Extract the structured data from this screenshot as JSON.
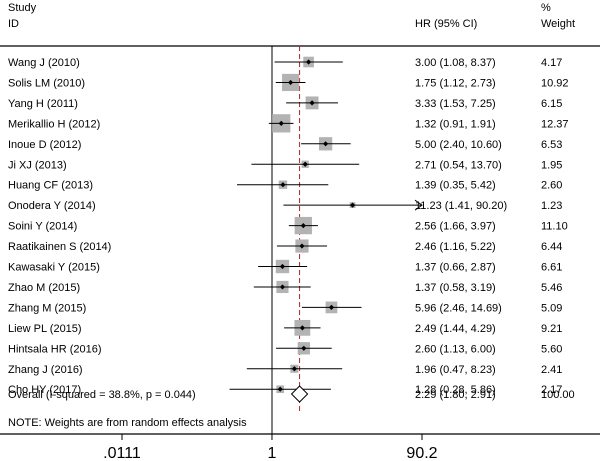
{
  "chart_data": {
    "type": "forest",
    "scale": "log",
    "headers": {
      "study_line1": "Study",
      "study_line2": "ID",
      "hr": "HR (95% CI)",
      "weight_line1": "%",
      "weight_line2": "Weight"
    },
    "studies": [
      {
        "id": "Wang J (2010)",
        "hr": 3.0,
        "lo": 1.08,
        "hi": 8.37,
        "weight": 4.17,
        "ci_text": "3.00 (1.08, 8.37)",
        "weight_text": "4.17"
      },
      {
        "id": "Solis LM (2010)",
        "hr": 1.75,
        "lo": 1.12,
        "hi": 2.73,
        "weight": 10.92,
        "ci_text": "1.75 (1.12, 2.73)",
        "weight_text": "10.92"
      },
      {
        "id": "Yang H (2011)",
        "hr": 3.33,
        "lo": 1.53,
        "hi": 7.25,
        "weight": 6.15,
        "ci_text": "3.33 (1.53, 7.25)",
        "weight_text": "6.15"
      },
      {
        "id": "Merikallio H (2012)",
        "hr": 1.32,
        "lo": 0.91,
        "hi": 1.91,
        "weight": 12.37,
        "ci_text": "1.32 (0.91, 1.91)",
        "weight_text": "12.37"
      },
      {
        "id": "Inoue D (2012)",
        "hr": 5.0,
        "lo": 2.4,
        "hi": 10.6,
        "weight": 6.53,
        "ci_text": "5.00 (2.40, 10.60)",
        "weight_text": "6.53"
      },
      {
        "id": "Ji XJ (2013)",
        "hr": 2.71,
        "lo": 0.54,
        "hi": 13.7,
        "weight": 1.95,
        "ci_text": "2.71 (0.54, 13.70)",
        "weight_text": "1.95"
      },
      {
        "id": "Huang CF (2013)",
        "hr": 1.39,
        "lo": 0.35,
        "hi": 5.42,
        "weight": 2.6,
        "ci_text": "1.39 (0.35, 5.42)",
        "weight_text": "2.60"
      },
      {
        "id": "Onodera Y (2014)",
        "hr": 11.23,
        "lo": 1.41,
        "hi": 90.2,
        "weight": 1.23,
        "ci_text": "11.23 (1.41, 90.20)",
        "weight_text": "1.23",
        "arrow": true
      },
      {
        "id": "Soini Y (2014)",
        "hr": 2.56,
        "lo": 1.66,
        "hi": 3.97,
        "weight": 11.1,
        "ci_text": "2.56 (1.66, 3.97)",
        "weight_text": "11.10"
      },
      {
        "id": "Raatikainen S (2014)",
        "hr": 2.46,
        "lo": 1.16,
        "hi": 5.22,
        "weight": 6.44,
        "ci_text": "2.46 (1.16, 5.22)",
        "weight_text": "6.44"
      },
      {
        "id": "Kawasaki Y (2015)",
        "hr": 1.37,
        "lo": 0.66,
        "hi": 2.87,
        "weight": 6.61,
        "ci_text": "1.37 (0.66, 2.87)",
        "weight_text": "6.61"
      },
      {
        "id": "Zhao M (2015)",
        "hr": 1.37,
        "lo": 0.58,
        "hi": 3.19,
        "weight": 5.46,
        "ci_text": "1.37 (0.58, 3.19)",
        "weight_text": "5.46"
      },
      {
        "id": "Zhang M (2015)",
        "hr": 5.96,
        "lo": 2.46,
        "hi": 14.69,
        "weight": 5.09,
        "ci_text": "5.96 (2.46, 14.69)",
        "weight_text": "5.09"
      },
      {
        "id": "Liew PL (2015)",
        "hr": 2.49,
        "lo": 1.44,
        "hi": 4.29,
        "weight": 9.21,
        "ci_text": "2.49 (1.44, 4.29)",
        "weight_text": "9.21"
      },
      {
        "id": "Hintsala HR  (2016)",
        "hr": 2.6,
        "lo": 1.13,
        "hi": 6.0,
        "weight": 5.6,
        "ci_text": "2.60 (1.13, 6.00)",
        "weight_text": "5.60"
      },
      {
        "id": "Zhang J (2016)",
        "hr": 1.96,
        "lo": 0.47,
        "hi": 8.23,
        "weight": 2.41,
        "ci_text": "1.96 (0.47, 8.23)",
        "weight_text": "2.41"
      },
      {
        "id": "Cho HY (2017)",
        "hr": 1.28,
        "lo": 0.28,
        "hi": 5.86,
        "weight": 2.17,
        "ci_text": "1.28 (0.28, 5.86)",
        "weight_text": "2.17"
      }
    ],
    "overall": {
      "label": "Overall  (I-squared = 38.8%, p = 0.044)",
      "hr": 2.29,
      "lo": 1.8,
      "hi": 2.91,
      "ci_text": "2.29 (1.80, 2.91)",
      "weight_text": "100.00"
    },
    "note": "NOTE: Weights are from random effects analysis",
    "x_ticks": [
      {
        "value": 0.0111,
        "label": ".0111"
      },
      {
        "value": 1,
        "label": "1"
      },
      {
        "value": 90.2,
        "label": "90.2"
      }
    ],
    "xlim": [
      0.0111,
      90.2
    ],
    "null_value": 1,
    "colors": {
      "box": "#b3b3b3",
      "dashed": "#b22222",
      "line": "#000000"
    }
  }
}
